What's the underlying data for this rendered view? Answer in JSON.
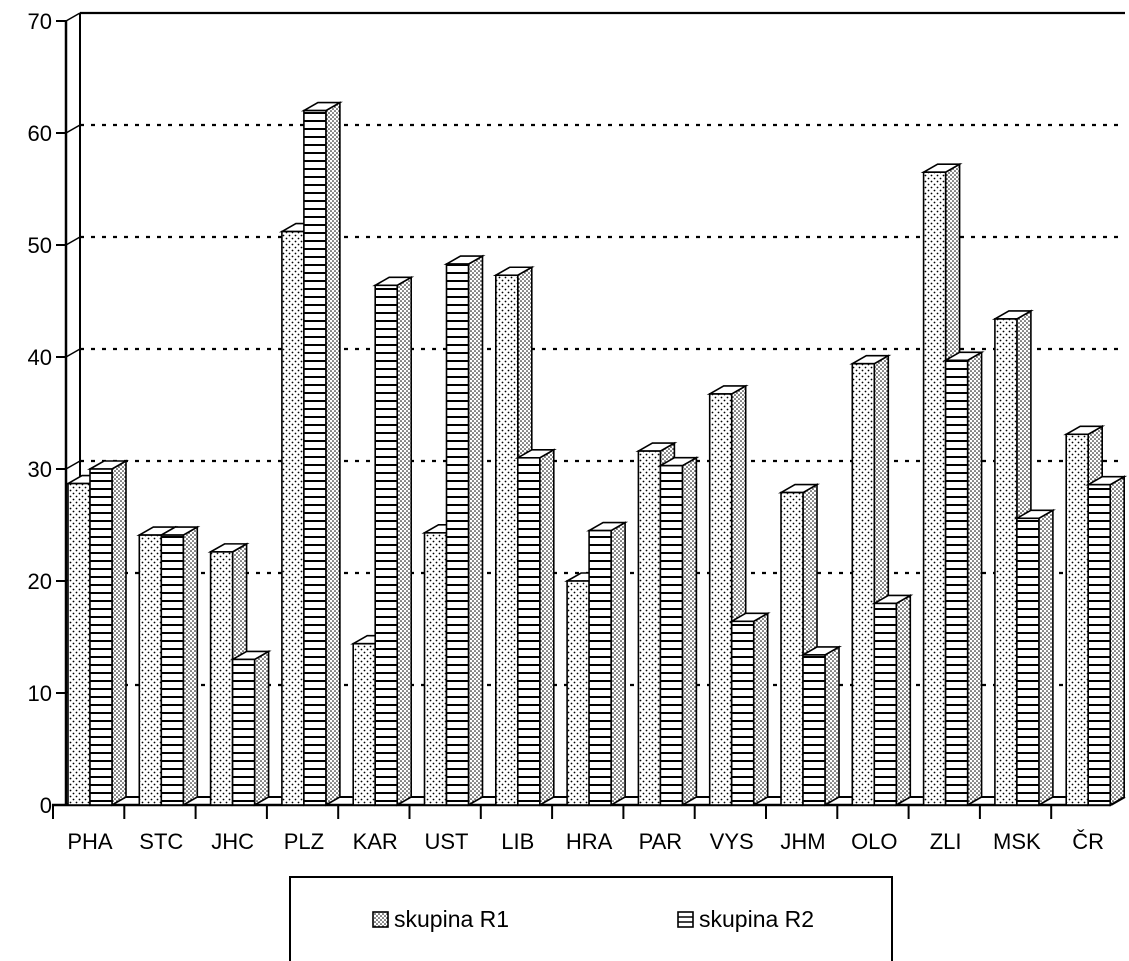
{
  "chart_data": {
    "type": "bar",
    "categories": [
      "PHA",
      "STC",
      "JHC",
      "PLZ",
      "KAR",
      "UST",
      "LIB",
      "HRA",
      "PAR",
      "VYS",
      "JHM",
      "OLO",
      "ZLI",
      "MSK",
      "ČR"
    ],
    "series": [
      {
        "name": "skupina R1",
        "pattern": "dots",
        "values": [
          28.7,
          24.1,
          22.6,
          51.2,
          14.4,
          24.3,
          47.3,
          20.0,
          31.6,
          36.7,
          27.9,
          39.4,
          56.5,
          43.4,
          33.1
        ]
      },
      {
        "name": "skupina R2",
        "pattern": "horizontal-lines",
        "values": [
          30.0,
          24.1,
          13.0,
          62.0,
          46.4,
          48.3,
          31.0,
          24.5,
          30.3,
          16.4,
          13.4,
          18.0,
          39.7,
          25.6,
          28.6
        ]
      }
    ],
    "yticks": [
      0,
      10,
      20,
      30,
      40,
      50,
      60,
      70
    ],
    "ylim": [
      0,
      70
    ],
    "grid": "dotted horizontal",
    "legend_position": "bottom"
  }
}
